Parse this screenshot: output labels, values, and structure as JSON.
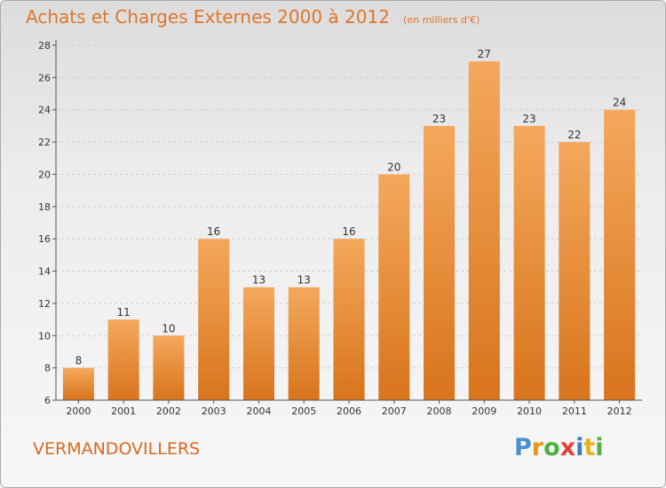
{
  "title": "Achats et Charges Externes 2000 à 2012",
  "subtitle": "(en milliers d'€)",
  "commune": "VERMANDOVILLERS",
  "logo": {
    "letters": [
      "P",
      "r",
      "o",
      "x",
      "i",
      "t",
      "i"
    ],
    "colors": [
      "#4a8fd0",
      "#e8961e",
      "#4fb13e",
      "#e1413a",
      "#3c7dc6",
      "#e8b01e",
      "#4fb13e"
    ]
  },
  "colors": {
    "bar_top": "#f4a85c",
    "bar_bottom": "#d8741c",
    "title": "#e0762a"
  },
  "chart_data": {
    "type": "bar",
    "categories": [
      "2000",
      "2001",
      "2002",
      "2003",
      "2004",
      "2005",
      "2006",
      "2007",
      "2008",
      "2009",
      "2010",
      "2011",
      "2012"
    ],
    "values": [
      8,
      11,
      10,
      16,
      13,
      13,
      16,
      20,
      23,
      27,
      23,
      22,
      24
    ],
    "ylim": [
      6,
      28
    ],
    "yticks": [
      6,
      8,
      10,
      12,
      14,
      16,
      18,
      20,
      22,
      24,
      26,
      28
    ],
    "grid": true
  }
}
